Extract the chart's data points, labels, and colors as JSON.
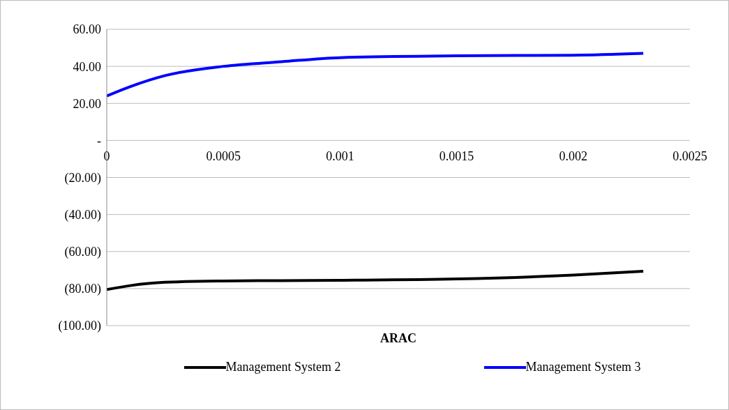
{
  "chart_data": {
    "type": "line",
    "xlabel": "ARAC",
    "x": [
      0,
      0.0001,
      0.00025,
      0.0005,
      0.00075,
      0.001,
      0.0015,
      0.002,
      0.0023
    ],
    "series": [
      {
        "name": "Management System 2",
        "color": "#000000",
        "values": [
          -80.5,
          -78.4,
          -76.6,
          -75.9,
          -75.7,
          -75.5,
          -74.8,
          -72.7,
          -70.6
        ]
      },
      {
        "name": "Management System 3",
        "color": "#0000ff",
        "values": [
          24,
          29,
          35,
          40,
          42.5,
          44.7,
          45.7,
          46,
          47
        ]
      }
    ],
    "xlim": [
      0,
      0.0025
    ],
    "xticks": [
      0,
      0.0005,
      0.001,
      0.0015,
      0.002,
      0.0025
    ],
    "ylim": [
      -100,
      60
    ],
    "yticks": [
      {
        "value": -100,
        "label": "(100.00)"
      },
      {
        "value": -80,
        "label": "(80.00)"
      },
      {
        "value": -60,
        "label": "(60.00)"
      },
      {
        "value": -40,
        "label": "(40.00)"
      },
      {
        "value": -20,
        "label": "(20.00)"
      },
      {
        "value": 0,
        "label": "-"
      },
      {
        "value": 20,
        "label": "20.00"
      },
      {
        "value": 40,
        "label": "40.00"
      },
      {
        "value": 60,
        "label": "60.00"
      }
    ],
    "grid": "y",
    "legend": "bottom",
    "marker": "none",
    "line_style": "solid"
  }
}
